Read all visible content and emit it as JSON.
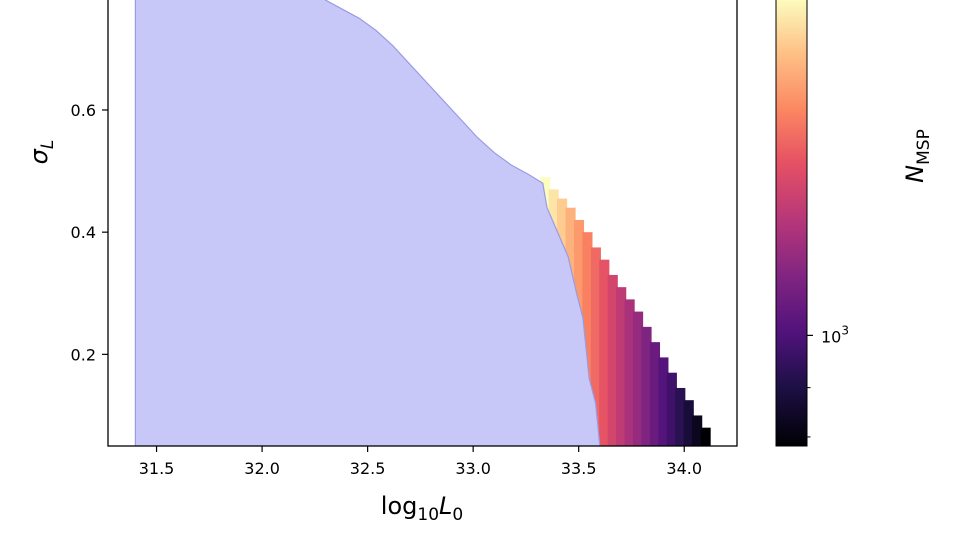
{
  "chart_data": {
    "type": "heatmap",
    "title": "",
    "xlabel_main": "log",
    "xlabel_sub": "10",
    "xlabel_var": "L",
    "xlabel_var_sub": "0",
    "ylabel_var": "σ",
    "ylabel_sub": "L",
    "xlim": [
      31.27,
      34.25
    ],
    "ylim": [
      0.05,
      0.78
    ],
    "x_ticks": [
      31.5,
      32.0,
      32.5,
      33.0,
      33.5,
      34.0
    ],
    "x_tick_labels": [
      "31.5",
      "32.0",
      "32.5",
      "33.0",
      "33.5",
      "34.0"
    ],
    "y_ticks": [
      0.2,
      0.4,
      0.6
    ],
    "y_tick_labels": [
      "0.2",
      "0.4",
      "0.6"
    ],
    "grid": false,
    "excluded_region": {
      "color": "#c8c8f8",
      "edge_color": "#9a9ae8",
      "x_left": 31.4,
      "boundary": [
        [
          32.3,
          0.78
        ],
        [
          32.38,
          0.765
        ],
        [
          32.46,
          0.75
        ],
        [
          32.54,
          0.73
        ],
        [
          32.62,
          0.705
        ],
        [
          32.7,
          0.675
        ],
        [
          32.78,
          0.645
        ],
        [
          32.86,
          0.615
        ],
        [
          32.94,
          0.585
        ],
        [
          33.02,
          0.555
        ],
        [
          33.1,
          0.53
        ],
        [
          33.18,
          0.51
        ],
        [
          33.26,
          0.495
        ],
        [
          33.33,
          0.48
        ],
        [
          33.35,
          0.44
        ],
        [
          33.4,
          0.4
        ],
        [
          33.45,
          0.36
        ],
        [
          33.49,
          0.3
        ],
        [
          33.52,
          0.26
        ],
        [
          33.55,
          0.16
        ],
        [
          33.58,
          0.12
        ],
        [
          33.6,
          0.05
        ]
      ]
    },
    "allowed_region_columns": [
      [
        33.34,
        0.49
      ],
      [
        33.38,
        0.47
      ],
      [
        33.42,
        0.455
      ],
      [
        33.46,
        0.44
      ],
      [
        33.5,
        0.42
      ],
      [
        33.54,
        0.4
      ],
      [
        33.58,
        0.375
      ],
      [
        33.62,
        0.355
      ],
      [
        33.66,
        0.33
      ],
      [
        33.7,
        0.31
      ],
      [
        33.74,
        0.29
      ],
      [
        33.78,
        0.27
      ],
      [
        33.82,
        0.245
      ],
      [
        33.86,
        0.22
      ],
      [
        33.9,
        0.195
      ],
      [
        33.94,
        0.17
      ],
      [
        33.98,
        0.145
      ],
      [
        34.02,
        0.125
      ],
      [
        34.06,
        0.1
      ],
      [
        34.1,
        0.08
      ]
    ],
    "colorbar": {
      "label_var": "N",
      "label_sub": "MSP",
      "scale": "log",
      "range": [
        470,
        10000
      ],
      "tick_label_base": "10",
      "tick_label_exp": "3",
      "major_tick": 1000,
      "minor_ticks": [
        500,
        700
      ],
      "colormap": "magma"
    }
  }
}
